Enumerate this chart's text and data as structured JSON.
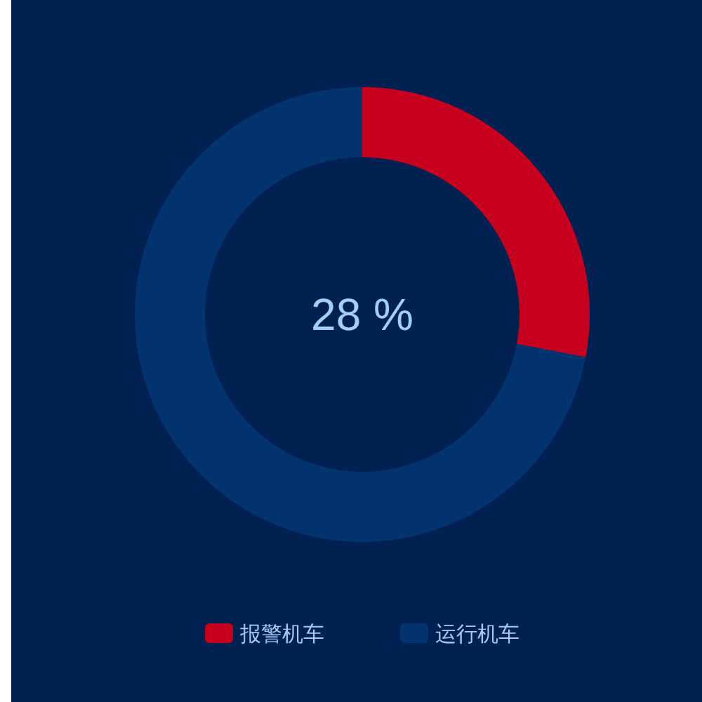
{
  "chart_data": {
    "type": "donut",
    "categories": [
      "报警机车",
      "运行机车"
    ],
    "values": [
      28,
      72
    ],
    "colors": [
      "#c8001f",
      "#04346f"
    ],
    "annotations": [
      "28 %"
    ],
    "legend": "bottom"
  }
}
